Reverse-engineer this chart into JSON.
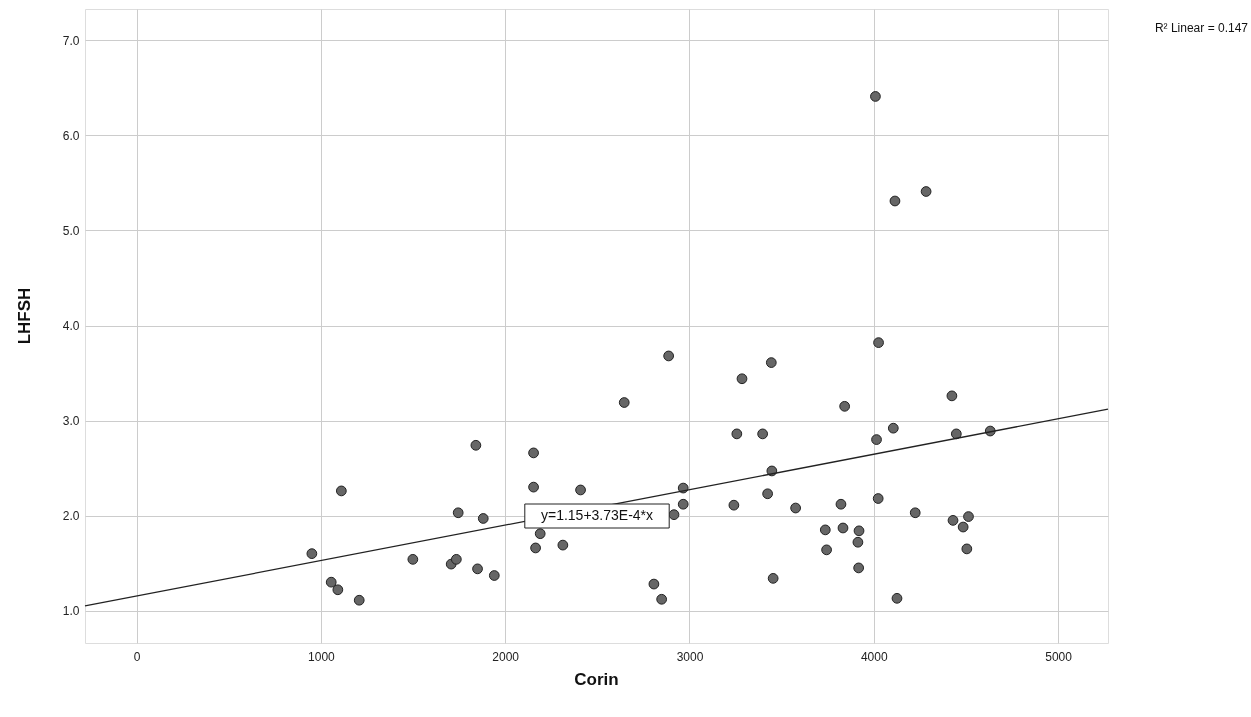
{
  "chart_data": {
    "type": "scatter",
    "xlabel": "Corin",
    "ylabel": "LHFSH",
    "xlim": [
      -280,
      5271
    ],
    "ylim": [
      0.66,
      7.33
    ],
    "xticks": [
      0,
      1000,
      2000,
      3000,
      4000,
      5000
    ],
    "yticks": [
      {
        "value": 1,
        "label": "1.0"
      },
      {
        "value": 2,
        "label": "2.0"
      },
      {
        "value": 3,
        "label": "3.0"
      },
      {
        "value": 4,
        "label": "4.0"
      },
      {
        "value": 5,
        "label": "5.0"
      },
      {
        "value": 6,
        "label": "6.0"
      },
      {
        "value": 7,
        "label": "7.0"
      }
    ],
    "grid": true,
    "annotations": [
      "y=1.15+3.73E-4*x",
      "R² Linear = 0.147"
    ],
    "series": [
      {
        "marker": "circle",
        "color": "#666666",
        "x": [
          951,
          1056,
          1092,
          1111,
          1208,
          1499,
          1707,
          1735,
          1745,
          1841,
          1850,
          1881,
          1941,
          2646,
          2154,
          2154,
          2190,
          2165,
          2313,
          2409,
          2807,
          2849,
          2966,
          2966,
          2916,
          2887,
          3285,
          3444,
          4026,
          3842,
          4424,
          3257,
          3397,
          4106,
          4015,
          4448,
          4632,
          3447,
          3424,
          3241,
          3576,
          3822,
          4024,
          4225,
          4430,
          4514,
          4485,
          4505,
          3737,
          3833,
          3920,
          3914,
          3744,
          3918,
          3454,
          4126,
          4009,
          4115,
          4284
        ],
        "values": [
          1.6,
          1.3,
          1.22,
          2.26,
          1.11,
          1.54,
          1.49,
          1.54,
          2.03,
          2.74,
          1.44,
          1.97,
          1.37,
          3.19,
          2.66,
          2.3,
          1.81,
          1.66,
          1.69,
          2.27,
          1.28,
          1.12,
          2.29,
          2.12,
          2.01,
          3.68,
          3.44,
          3.61,
          3.82,
          3.15,
          3.26,
          2.86,
          2.86,
          2.92,
          2.8,
          2.86,
          2.89,
          2.47,
          2.23,
          2.11,
          2.08,
          2.12,
          2.18,
          2.03,
          1.95,
          1.99,
          1.88,
          1.65,
          1.85,
          1.87,
          1.84,
          1.72,
          1.64,
          1.45,
          1.34,
          1.13,
          6.41,
          5.31,
          5.41
        ]
      },
      {
        "type": "line",
        "color": "#222222",
        "x": [
          -280,
          5271
        ],
        "values": [
          1.05,
          3.12
        ]
      }
    ]
  }
}
